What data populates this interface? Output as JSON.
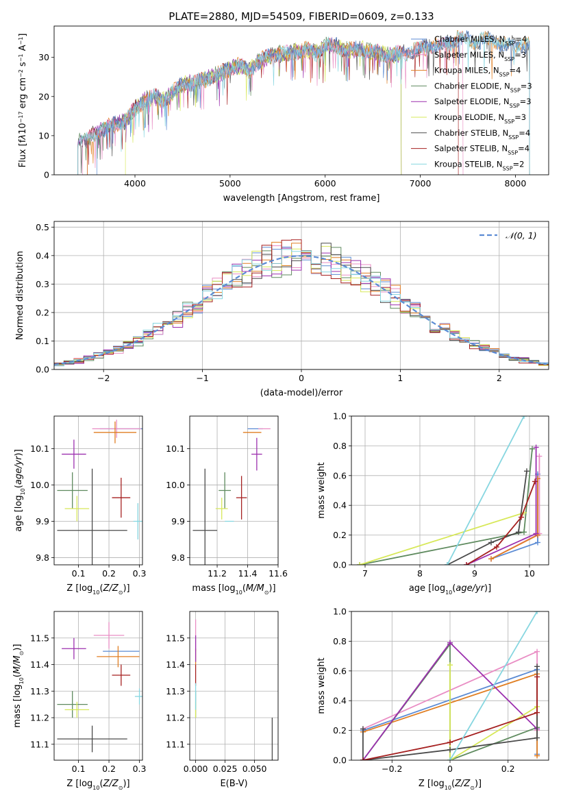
{
  "figure_title": "PLATE=2880, MJD=54509, FIBERID=0609, z=0.133",
  "models": [
    {
      "label": "Chabrier MILES, N",
      "sub": "SSP",
      "suffix": "=4",
      "color": "#5b8bd4"
    },
    {
      "label": "Salpeter MILES, N",
      "sub": "SSP",
      "suffix": "=3",
      "color": "#e98dc4"
    },
    {
      "label": "Kroupa MILES, N",
      "sub": "SSP",
      "suffix": "=4",
      "color": "#e07e22"
    },
    {
      "label": "Chabrier ELODIE, N",
      "sub": "SSP",
      "suffix": "=3",
      "color": "#5e8a5e"
    },
    {
      "label": "Salpeter ELODIE, N",
      "sub": "SSP",
      "suffix": "=3",
      "color": "#9b2fae"
    },
    {
      "label": "Kroupa ELODIE, N",
      "sub": "SSP",
      "suffix": "=3",
      "color": "#d7e858"
    },
    {
      "label": "Chabrier STELIB, N",
      "sub": "SSP",
      "suffix": "=4",
      "color": "#4a4a4a"
    },
    {
      "label": "Salpeter STELIB, N",
      "sub": "SSP",
      "suffix": "=4",
      "color": "#a51f1f"
    },
    {
      "label": "Kroupa STELIB, N",
      "sub": "SSP",
      "suffix": "=2",
      "color": "#86d6e0"
    }
  ],
  "chart_data": [
    {
      "id": "spectrum",
      "type": "line",
      "xlabel": "wavelength [Angstrom, rest frame]",
      "ylabel_html": "Flux [f<tspan font-style='italic'>λ</tspan>10<tspan baseline-shift='super' font-size='8'>−17</tspan> erg cm<tspan baseline-shift='super' font-size='8'>−2</tspan> s<tspan baseline-shift='super' font-size='8'>−1</tspan> A<tspan baseline-shift='super' font-size='8'>−1</tspan>]",
      "xlim": [
        3150,
        8350
      ],
      "ylim": [
        0,
        38
      ],
      "xticks": [
        4000,
        5000,
        6000,
        7000,
        8000
      ],
      "yticks": [
        0,
        10,
        20,
        30
      ],
      "envelope": [
        [
          3400,
          8.5
        ],
        [
          3500,
          9
        ],
        [
          3600,
          11
        ],
        [
          3700,
          12
        ],
        [
          3800,
          13
        ],
        [
          3900,
          13.5
        ],
        [
          4000,
          17
        ],
        [
          4100,
          19
        ],
        [
          4200,
          20
        ],
        [
          4300,
          19
        ],
        [
          4400,
          21
        ],
        [
          4500,
          23
        ],
        [
          4600,
          23.5
        ],
        [
          4700,
          24
        ],
        [
          4800,
          25
        ],
        [
          4900,
          26
        ],
        [
          5000,
          27
        ],
        [
          5100,
          28
        ],
        [
          5200,
          26.5
        ],
        [
          5300,
          29
        ],
        [
          5400,
          30
        ],
        [
          5500,
          31
        ],
        [
          5600,
          31
        ],
        [
          5700,
          31.5
        ],
        [
          5800,
          32
        ],
        [
          5900,
          31
        ],
        [
          6000,
          33
        ],
        [
          6100,
          33
        ],
        [
          6200,
          32
        ],
        [
          6300,
          32
        ],
        [
          6400,
          32
        ],
        [
          6500,
          31.5
        ],
        [
          6600,
          31
        ],
        [
          6700,
          30.5
        ],
        [
          6800,
          31
        ],
        [
          6900,
          31.5
        ],
        [
          7000,
          32
        ],
        [
          7100,
          33
        ],
        [
          7200,
          33
        ],
        [
          7300,
          33.5
        ],
        [
          7400,
          35
        ],
        [
          7500,
          34.5
        ],
        [
          7600,
          34
        ],
        [
          7700,
          35
        ],
        [
          7800,
          34
        ],
        [
          7900,
          33
        ],
        [
          8000,
          33.5
        ],
        [
          8100,
          33
        ]
      ],
      "model_ranges": [
        [
          3600,
          8150
        ],
        [
          3450,
          7450
        ],
        [
          3500,
          8150
        ],
        [
          3400,
          6800
        ],
        [
          3400,
          6800
        ],
        [
          3900,
          6800
        ],
        [
          3400,
          8150
        ],
        [
          3500,
          7400
        ],
        [
          3400,
          8150
        ]
      ]
    },
    {
      "id": "residual_hist",
      "type": "histogram",
      "xlabel": "(data-model)/error",
      "ylabel": "Normed distribution",
      "xlim": [
        -2.5,
        2.5
      ],
      "ylim": [
        0,
        0.52
      ],
      "xticks": [
        -2,
        -1,
        0,
        1,
        2
      ],
      "yticks": [
        0.0,
        0.1,
        0.2,
        0.3,
        0.4,
        0.5
      ],
      "bin_width": 0.1,
      "legend": "𝒩(0, 1)",
      "reference_color": "#5b8bd4"
    },
    {
      "id": "age_vs_Z",
      "type": "scatter",
      "xlabel_html": "Z [log<tspan baseline-shift='sub' font-size='8'>10</tspan>(<tspan font-style='italic'>Z/Z</tspan><tspan baseline-shift='sub' font-size='8'>⊙</tspan>)]",
      "ylabel_html": "age  [log<tspan baseline-shift='sub' font-size='8'>10</tspan>(<tspan font-style='italic'>age/yr</tspan>)]",
      "xlim": [
        0.02,
        0.31
      ],
      "ylim": [
        9.78,
        10.19
      ],
      "xticks": [
        0.1,
        0.2,
        0.3
      ],
      "yticks": [
        9.8,
        9.9,
        10.0,
        10.1
      ],
      "points": [
        {
          "m": 0,
          "x": 0.24,
          "y": 10.155,
          "xe": 0.07,
          "ye": 0.0
        },
        {
          "m": 1,
          "x": 0.225,
          "y": 10.155,
          "xe": 0.08,
          "ye": 0.025
        },
        {
          "m": 2,
          "x": 0.22,
          "y": 10.145,
          "xe": 0.07,
          "ye": 0.03
        },
        {
          "m": 3,
          "x": 0.08,
          "y": 9.985,
          "xe": 0.05,
          "ye": 0.05
        },
        {
          "m": 4,
          "x": 0.085,
          "y": 10.085,
          "xe": 0.04,
          "ye": 0.04
        },
        {
          "m": 5,
          "x": 0.095,
          "y": 9.935,
          "xe": 0.04,
          "ye": 0.035
        },
        {
          "m": 6,
          "x": 0.145,
          "y": 9.875,
          "xe": 0.115,
          "ye": 0.17
        },
        {
          "m": 7,
          "x": 0.24,
          "y": 9.965,
          "xe": 0.03,
          "ye": 0.055
        },
        {
          "m": 8,
          "x": 0.295,
          "y": 9.9,
          "xe": 0.015,
          "ye": 0.05
        }
      ]
    },
    {
      "id": "age_vs_mass",
      "type": "scatter",
      "xlabel_html": "mass [log<tspan baseline-shift='sub' font-size='8'>10</tspan>(<tspan font-style='italic'>M/M</tspan><tspan baseline-shift='sub' font-size='8'>⊙</tspan>)]",
      "ylabel_html": "",
      "xlim": [
        11.02,
        11.6
      ],
      "ylim": [
        9.78,
        10.19
      ],
      "xticks": [
        11.2,
        11.4,
        11.6
      ],
      "yticks": [
        9.8,
        9.9,
        10.0,
        10.1
      ],
      "points": [
        {
          "m": 0,
          "x": 11.45,
          "y": 10.155,
          "xe": 0.05,
          "ye": 0.0
        },
        {
          "m": 1,
          "x": 11.51,
          "y": 10.155,
          "xe": 0.04,
          "ye": 0.0
        },
        {
          "m": 2,
          "x": 11.43,
          "y": 10.145,
          "xe": 0.06,
          "ye": 0.0
        },
        {
          "m": 3,
          "x": 11.25,
          "y": 9.985,
          "xe": 0.04,
          "ye": 0.05
        },
        {
          "m": 4,
          "x": 11.46,
          "y": 10.085,
          "xe": 0.035,
          "ye": 0.045
        },
        {
          "m": 5,
          "x": 11.23,
          "y": 9.935,
          "xe": 0.04,
          "ye": 0.03
        },
        {
          "m": 6,
          "x": 11.12,
          "y": 9.875,
          "xe": 0.08,
          "ye": 0.17
        },
        {
          "m": 7,
          "x": 11.36,
          "y": 9.965,
          "xe": 0.035,
          "ye": 0.06
        },
        {
          "m": 8,
          "x": 11.28,
          "y": 9.9,
          "xe": 0.03,
          "ye": 0.0
        }
      ]
    },
    {
      "id": "mass_weight_vs_age",
      "type": "line",
      "xlabel_html": "age  [log<tspan baseline-shift='sub' font-size='8'>10</tspan>(<tspan font-style='italic'>age/yr</tspan>)]",
      "ylabel": "mass weight",
      "xlim": [
        6.75,
        10.35
      ],
      "ylim": [
        0,
        1.0
      ],
      "xticks": [
        7,
        8,
        9,
        10
      ],
      "yticks": [
        0.0,
        0.2,
        0.4,
        0.6,
        0.8,
        1.0
      ],
      "series": [
        {
          "m": 0,
          "points": [
            [
              9.3,
              0.04
            ],
            [
              10.15,
              0.15
            ],
            [
              10.15,
              0.61
            ],
            [
              10.15,
              0.2
            ]
          ]
        },
        {
          "m": 1,
          "points": [
            [
              9.3,
              0.04
            ],
            [
              10.18,
              0.21
            ],
            [
              10.18,
              0.73
            ]
          ]
        },
        {
          "m": 2,
          "points": [
            [
              9.3,
              0.04
            ],
            [
              10.15,
              0.2
            ],
            [
              10.15,
              0.58
            ]
          ]
        },
        {
          "m": 3,
          "points": [
            [
              6.9,
              0.0
            ],
            [
              9.9,
              0.22
            ],
            [
              10.05,
              0.78
            ]
          ]
        },
        {
          "m": 4,
          "points": [
            [
              8.85,
              0.0
            ],
            [
              10.12,
              0.21
            ],
            [
              10.12,
              0.79
            ]
          ]
        },
        {
          "m": 5,
          "points": [
            [
              6.9,
              0.0
            ],
            [
              9.9,
              0.35
            ]
          ]
        },
        {
          "m": 6,
          "points": [
            [
              8.5,
              0.0
            ],
            [
              9.3,
              0.15
            ],
            [
              9.8,
              0.22
            ],
            [
              9.95,
              0.63
            ]
          ]
        },
        {
          "m": 7,
          "points": [
            [
              8.85,
              0.0
            ],
            [
              9.4,
              0.12
            ],
            [
              9.85,
              0.32
            ],
            [
              10.1,
              0.56
            ]
          ]
        },
        {
          "m": 8,
          "points": [
            [
              8.5,
              0.0
            ],
            [
              9.9,
              1.0
            ]
          ]
        }
      ]
    },
    {
      "id": "mass_vs_Z",
      "type": "scatter",
      "xlabel_html": "Z [log<tspan baseline-shift='sub' font-size='8'>10</tspan>(<tspan font-style='italic'>Z/Z</tspan><tspan baseline-shift='sub' font-size='8'>⊙</tspan>)]",
      "ylabel_html": "mass [log<tspan baseline-shift='sub' font-size='8'>10</tspan>(<tspan font-style='italic'>M/M</tspan><tspan baseline-shift='sub' font-size='8'>⊙</tspan>)]",
      "xlim": [
        0.02,
        0.31
      ],
      "ylim": [
        11.04,
        11.6
      ],
      "xticks": [
        0.1,
        0.2,
        0.3
      ],
      "yticks": [
        11.1,
        11.2,
        11.3,
        11.4,
        11.5
      ],
      "points": [
        {
          "m": 0,
          "x": 0.24,
          "y": 11.45,
          "xe": 0.06,
          "ye": 0.0
        },
        {
          "m": 1,
          "x": 0.2,
          "y": 11.51,
          "xe": 0.05,
          "ye": 0.05
        },
        {
          "m": 2,
          "x": 0.23,
          "y": 11.43,
          "xe": 0.07,
          "ye": 0.04
        },
        {
          "m": 3,
          "x": 0.08,
          "y": 11.25,
          "xe": 0.05,
          "ye": 0.05
        },
        {
          "m": 4,
          "x": 0.085,
          "y": 11.46,
          "xe": 0.04,
          "ye": 0.04
        },
        {
          "m": 5,
          "x": 0.095,
          "y": 11.23,
          "xe": 0.04,
          "ye": 0.03
        },
        {
          "m": 6,
          "x": 0.145,
          "y": 11.12,
          "xe": 0.115,
          "ye": 0.05
        },
        {
          "m": 7,
          "x": 0.24,
          "y": 11.36,
          "xe": 0.03,
          "ye": 0.04
        },
        {
          "m": 8,
          "x": 0.3,
          "y": 11.28,
          "xe": 0.015,
          "ye": 0.03
        }
      ]
    },
    {
      "id": "mass_vs_ebv",
      "type": "scatter",
      "xlabel": "E(B-V)",
      "ylabel_html": "",
      "xlim": [
        -0.005,
        0.07
      ],
      "ylim": [
        11.04,
        11.6
      ],
      "xticks": [
        0.0,
        0.025,
        0.05
      ],
      "xtick_labels": [
        "0.000",
        "0.025",
        "0.050"
      ],
      "yticks": [
        11.1,
        11.2,
        11.3,
        11.4,
        11.5
      ],
      "points": [
        {
          "m": 0,
          "x": 0.0,
          "y": 11.45,
          "xe": 0,
          "ye": 0.0
        },
        {
          "m": 1,
          "x": 0.0,
          "y": 11.51,
          "xe": 0,
          "ye": 0.06
        },
        {
          "m": 2,
          "x": 0.0,
          "y": 11.43,
          "xe": 0,
          "ye": 0.03
        },
        {
          "m": 3,
          "x": 0.0,
          "y": 11.25,
          "xe": 0,
          "ye": 0.05
        },
        {
          "m": 4,
          "x": 0.0,
          "y": 11.46,
          "xe": 0,
          "ye": 0.05
        },
        {
          "m": 5,
          "x": 0.0,
          "y": 11.23,
          "xe": 0,
          "ye": 0.03
        },
        {
          "m": 6,
          "x": 0.065,
          "y": 11.12,
          "xe": 0,
          "ye": 0.08
        },
        {
          "m": 7,
          "x": 0.0,
          "y": 11.36,
          "xe": 0,
          "ye": 0.04
        },
        {
          "m": 8,
          "x": 0.0,
          "y": 11.28,
          "xe": 0,
          "ye": 0.05
        }
      ]
    },
    {
      "id": "mass_weight_vs_Z",
      "type": "line",
      "xlabel_html": "Z [log<tspan baseline-shift='sub' font-size='8'>10</tspan>(<tspan font-style='italic'>Z/Z</tspan><tspan baseline-shift='sub' font-size='8'>⊙</tspan>)]",
      "ylabel": "mass weight",
      "xlim": [
        -0.34,
        0.34
      ],
      "ylim": [
        0,
        1.0
      ],
      "xticks": [
        -0.2,
        0.0,
        0.2
      ],
      "yticks": [
        0.0,
        0.2,
        0.4,
        0.6,
        0.8,
        1.0
      ],
      "series": [
        {
          "m": 0,
          "points": [
            [
              -0.3,
              0.2
            ],
            [
              0.3,
              0.61
            ],
            [
              0.3,
              0.04
            ]
          ]
        },
        {
          "m": 1,
          "points": [
            [
              -0.3,
              0.21
            ],
            [
              0.3,
              0.73
            ],
            [
              0.3,
              0.2
            ]
          ]
        },
        {
          "m": 2,
          "points": [
            [
              -0.3,
              0.19
            ],
            [
              0.3,
              0.58
            ],
            [
              0.3,
              0.03
            ]
          ]
        },
        {
          "m": 3,
          "points": [
            [
              -0.3,
              0.0
            ],
            [
              0.0,
              0.78
            ],
            [
              0.0,
              0.0
            ],
            [
              0.3,
              0.22
            ]
          ]
        },
        {
          "m": 4,
          "points": [
            [
              -0.3,
              0.0
            ],
            [
              0.0,
              0.79
            ],
            [
              0.3,
              0.21
            ]
          ]
        },
        {
          "m": 5,
          "points": [
            [
              0.0,
              0.0
            ],
            [
              0.0,
              0.64
            ],
            [
              0.0,
              0.0
            ],
            [
              0.3,
              0.36
            ]
          ]
        },
        {
          "m": 6,
          "points": [
            [
              -0.3,
              0.21
            ],
            [
              -0.3,
              0.0
            ],
            [
              0.0,
              0.07
            ],
            [
              0.3,
              0.15
            ],
            [
              0.3,
              0.63
            ]
          ]
        },
        {
          "m": 7,
          "points": [
            [
              -0.3,
              0.0
            ],
            [
              0.0,
              0.12
            ],
            [
              0.3,
              0.32
            ],
            [
              0.3,
              0.56
            ]
          ]
        },
        {
          "m": 8,
          "points": [
            [
              0.0,
              0.0
            ],
            [
              0.3,
              1.0
            ]
          ]
        }
      ]
    }
  ]
}
